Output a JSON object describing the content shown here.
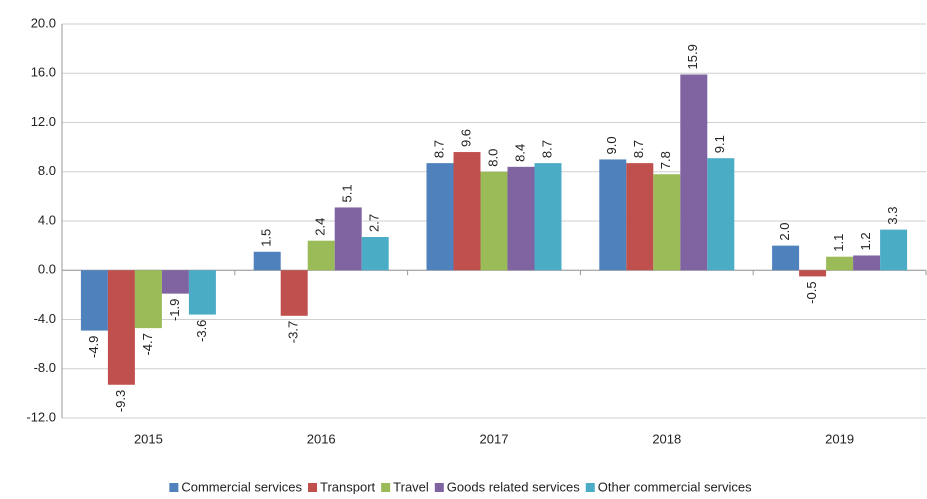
{
  "chart_data": {
    "type": "bar",
    "categories": [
      "2015",
      "2016",
      "2017",
      "2018",
      "2019"
    ],
    "series": [
      {
        "name": "Commercial services",
        "color": "#4f81bd",
        "values": [
          -4.9,
          1.5,
          8.7,
          9.0,
          2.0
        ],
        "value_labels": [
          "-4.9",
          "1.5",
          "8.7",
          "9.0",
          "2.0"
        ]
      },
      {
        "name": "Transport",
        "color": "#c0504d",
        "values": [
          -9.3,
          -3.7,
          9.6,
          8.7,
          -0.5
        ],
        "value_labels": [
          "-9.3",
          "-3.7",
          "9.6",
          "8.7",
          "-0.5"
        ]
      },
      {
        "name": "Travel",
        "color": "#9bbb59",
        "values": [
          -4.7,
          2.4,
          8.0,
          7.8,
          1.1
        ],
        "value_labels": [
          "-4.7",
          "2.4",
          "8.0",
          "7.8",
          "1.1"
        ]
      },
      {
        "name": "Goods related services",
        "color": "#8064a2",
        "values": [
          -1.9,
          5.1,
          8.4,
          15.9,
          1.2
        ],
        "value_labels": [
          "-1.9",
          "5.1",
          "8.4",
          "15.9",
          "1.2"
        ]
      },
      {
        "name": "Other commercial services",
        "color": "#4bacc6",
        "values": [
          -3.6,
          2.7,
          8.7,
          9.1,
          3.3
        ],
        "value_labels": [
          "-3.6",
          "2.7",
          "8.7",
          "9.1",
          "3.3"
        ]
      }
    ],
    "ylim": [
      -12,
      20
    ],
    "yticks": [
      {
        "value": -12,
        "label": "-12.0"
      },
      {
        "value": -8,
        "label": "-8.0"
      },
      {
        "value": -4,
        "label": "-4.0"
      },
      {
        "value": 0,
        "label": "0.0"
      },
      {
        "value": 4,
        "label": "4.0"
      },
      {
        "value": 8,
        "label": "8.0"
      },
      {
        "value": 12,
        "label": "12.0"
      },
      {
        "value": 16,
        "label": "16.0"
      },
      {
        "value": 20,
        "label": "20.0"
      }
    ],
    "grid": true,
    "legend": "bottom"
  }
}
